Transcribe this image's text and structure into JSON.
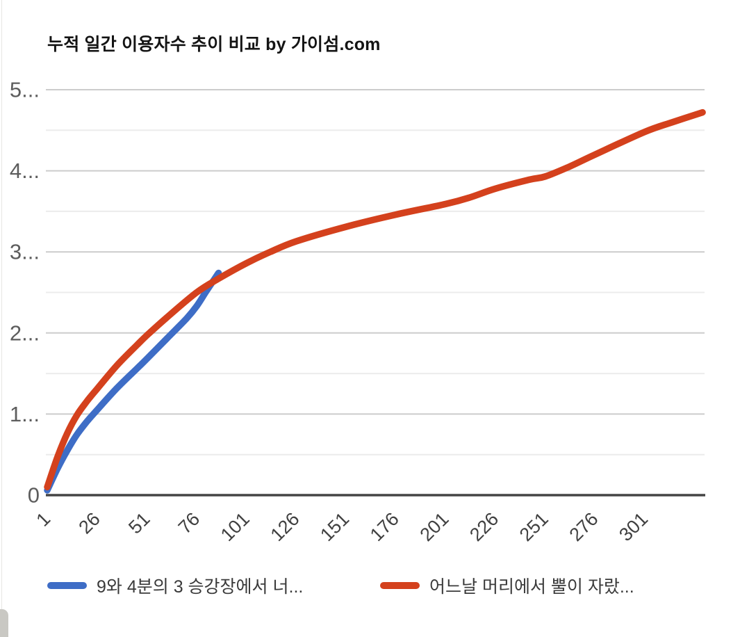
{
  "title": "누적 일간 이용자수 추이 비교 by 가이섬.com",
  "colors": {
    "blue_series": "#3E6DC6",
    "red_series": "#D4411D",
    "grid_major": "#cccccc",
    "grid_minor": "#ececec",
    "axis_line": "#454545",
    "y_label_text": "#5d5d5d",
    "x_label_text": "#404040",
    "legend_text": "#3a3a3a",
    "title_text": "#141414"
  },
  "chart_data": {
    "type": "line",
    "title": "누적 일간 이용자수 추이 비교 by 가이섬.com",
    "xlabel": "",
    "ylabel": "",
    "xlim": [
      1,
      331
    ],
    "ylim": [
      0,
      5
    ],
    "grid": true,
    "legend_position": "bottom",
    "x_tick_values": [
      1,
      26,
      51,
      76,
      101,
      126,
      151,
      176,
      201,
      226,
      251,
      276,
      301
    ],
    "x_tick_labels": [
      "1",
      "26",
      "51",
      "76",
      "101",
      "126",
      "151",
      "176",
      "201",
      "226",
      "251",
      "276",
      "301"
    ],
    "y_major_ticks": [
      0,
      1,
      2,
      3,
      4,
      5
    ],
    "y_tick_labels": [
      "0",
      "1...",
      "2...",
      "3...",
      "4...",
      "5..."
    ],
    "y_minor_ticks": [
      0.5,
      1.5,
      2.5,
      3.5,
      4.5
    ],
    "series": [
      {
        "name": "9와 4분의 3 승강장에서 너...",
        "color": "#3E6DC6",
        "points": [
          [
            1,
            0.06
          ],
          [
            6,
            0.32
          ],
          [
            11,
            0.55
          ],
          [
            16,
            0.75
          ],
          [
            21,
            0.91
          ],
          [
            26,
            1.05
          ],
          [
            36,
            1.32
          ],
          [
            46,
            1.56
          ],
          [
            51,
            1.68
          ],
          [
            61,
            1.93
          ],
          [
            71,
            2.18
          ],
          [
            76,
            2.33
          ],
          [
            81,
            2.52
          ],
          [
            87,
            2.74
          ]
        ]
      },
      {
        "name": "어느날 머리에서 뿔이 자랐...",
        "color": "#D4411D",
        "points": [
          [
            1,
            0.1
          ],
          [
            6,
            0.46
          ],
          [
            11,
            0.76
          ],
          [
            16,
            0.99
          ],
          [
            21,
            1.16
          ],
          [
            26,
            1.31
          ],
          [
            36,
            1.6
          ],
          [
            46,
            1.85
          ],
          [
            51,
            1.97
          ],
          [
            61,
            2.19
          ],
          [
            76,
            2.5
          ],
          [
            87,
            2.67
          ],
          [
            101,
            2.86
          ],
          [
            113,
            3.0
          ],
          [
            126,
            3.13
          ],
          [
            151,
            3.31
          ],
          [
            176,
            3.46
          ],
          [
            201,
            3.59
          ],
          [
            213,
            3.67
          ],
          [
            226,
            3.78
          ],
          [
            243,
            3.89
          ],
          [
            251,
            3.93
          ],
          [
            263,
            4.05
          ],
          [
            276,
            4.2
          ],
          [
            301,
            4.48
          ],
          [
            315,
            4.6
          ],
          [
            330,
            4.72
          ]
        ]
      }
    ]
  },
  "legend": {
    "items": [
      {
        "label": "9와 4분의 3 승강장에서 너...",
        "color": "#3E6DC6"
      },
      {
        "label": "어느날 머리에서 뿔이 자랐...",
        "color": "#D4411D"
      }
    ]
  }
}
